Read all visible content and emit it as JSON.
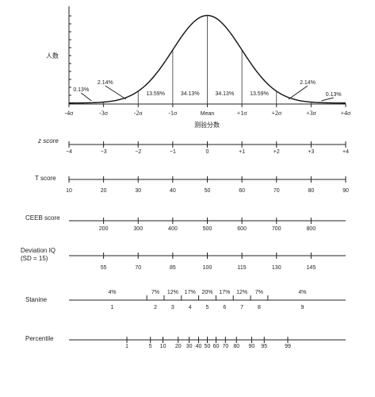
{
  "chart_data": {
    "type": "line",
    "y_label": "人数",
    "x_label": "测验分数",
    "curve": {
      "distribution": "normal",
      "sigma_ticks": [
        "-4σ",
        "-3σ",
        "-2σ",
        "-1σ",
        "Mean",
        "+1σ",
        "+2σ",
        "+3σ",
        "+4σ"
      ],
      "sigma_values": [
        -4,
        -3,
        -2,
        -1,
        0,
        1,
        2,
        3,
        4
      ],
      "area_percentages": [
        {
          "label": "0.13%",
          "from": -4,
          "to": -3
        },
        {
          "label": "2.14%",
          "from": -3,
          "to": -2
        },
        {
          "label": "13.59%",
          "from": -2,
          "to": -1
        },
        {
          "label": "34.13%",
          "from": -1,
          "to": 0
        },
        {
          "label": "34.13%",
          "from": 0,
          "to": 1
        },
        {
          "label": "13.59%",
          "from": 1,
          "to": 2
        },
        {
          "label": "2.14%",
          "from": 2,
          "to": 3
        },
        {
          "label": "0.13%",
          "from": 3,
          "to": 4
        }
      ]
    },
    "scales": [
      {
        "name": "z score",
        "italic": true,
        "ticks": [
          {
            "s": -4,
            "label": "−4"
          },
          {
            "s": -3,
            "label": "−3"
          },
          {
            "s": -2,
            "label": "−2"
          },
          {
            "s": -1,
            "label": "−1"
          },
          {
            "s": 0,
            "label": "0"
          },
          {
            "s": 1,
            "label": "+1"
          },
          {
            "s": 2,
            "label": "+2"
          },
          {
            "s": 3,
            "label": "+3"
          },
          {
            "s": 4,
            "label": "+4"
          }
        ]
      },
      {
        "name": "T score",
        "ticks": [
          {
            "s": -4,
            "label": "10"
          },
          {
            "s": -3,
            "label": "20"
          },
          {
            "s": -2,
            "label": "30"
          },
          {
            "s": -1,
            "label": "40"
          },
          {
            "s": 0,
            "label": "50"
          },
          {
            "s": 1,
            "label": "60"
          },
          {
            "s": 2,
            "label": "70"
          },
          {
            "s": 3,
            "label": "80"
          },
          {
            "s": 4,
            "label": "90"
          }
        ]
      },
      {
        "name": "CEEB score",
        "ticks": [
          {
            "s": -3,
            "label": "200"
          },
          {
            "s": -2,
            "label": "300"
          },
          {
            "s": -1,
            "label": "400"
          },
          {
            "s": 0,
            "label": "500"
          },
          {
            "s": 1,
            "label": "600"
          },
          {
            "s": 2,
            "label": "700"
          },
          {
            "s": 3,
            "label": "800"
          }
        ]
      },
      {
        "name": "Deviation IQ",
        "name_line2": "(SD = 15)",
        "ticks": [
          {
            "s": -3,
            "label": "55"
          },
          {
            "s": -2,
            "label": "70"
          },
          {
            "s": -1,
            "label": "85"
          },
          {
            "s": 0,
            "label": "100"
          },
          {
            "s": 1,
            "label": "115"
          },
          {
            "s": 2,
            "label": "130"
          },
          {
            "s": 3,
            "label": "145"
          }
        ]
      },
      {
        "name": "Stanine",
        "percents": [
          {
            "s": -2.75,
            "label": "4%"
          },
          {
            "s": -1.5,
            "label": "7%"
          },
          {
            "s": -1.0,
            "label": "12%"
          },
          {
            "s": -0.5,
            "label": "17%"
          },
          {
            "s": 0.0,
            "label": "20%"
          },
          {
            "s": 0.5,
            "label": "17%"
          },
          {
            "s": 1.0,
            "label": "12%"
          },
          {
            "s": 1.5,
            "label": "7%"
          },
          {
            "s": 2.75,
            "label": "4%"
          }
        ],
        "boundaries": [
          -1.75,
          -1.25,
          -0.75,
          -0.25,
          0.25,
          0.75,
          1.25,
          1.75
        ],
        "ticks": [
          {
            "s": -2.75,
            "label": "1"
          },
          {
            "s": -1.5,
            "label": "2"
          },
          {
            "s": -1.0,
            "label": "3"
          },
          {
            "s": -0.5,
            "label": "4"
          },
          {
            "s": 0.0,
            "label": "5"
          },
          {
            "s": 0.5,
            "label": "6"
          },
          {
            "s": 1.0,
            "label": "7"
          },
          {
            "s": 1.5,
            "label": "8"
          },
          {
            "s": 2.75,
            "label": "9"
          }
        ]
      },
      {
        "name": "Percentile",
        "ticks": [
          {
            "s": -2.326,
            "label": "1"
          },
          {
            "s": -1.645,
            "label": "5"
          },
          {
            "s": -1.282,
            "label": "10"
          },
          {
            "s": -0.842,
            "label": "20"
          },
          {
            "s": -0.524,
            "label": "30"
          },
          {
            "s": -0.253,
            "label": "40"
          },
          {
            "s": 0.0,
            "label": "50"
          },
          {
            "s": 0.253,
            "label": "60"
          },
          {
            "s": 0.524,
            "label": "70"
          },
          {
            "s": 0.842,
            "label": "80"
          },
          {
            "s": 1.282,
            "label": "90"
          },
          {
            "s": 1.645,
            "label": "95"
          },
          {
            "s": 2.326,
            "label": "99"
          }
        ]
      }
    ]
  }
}
